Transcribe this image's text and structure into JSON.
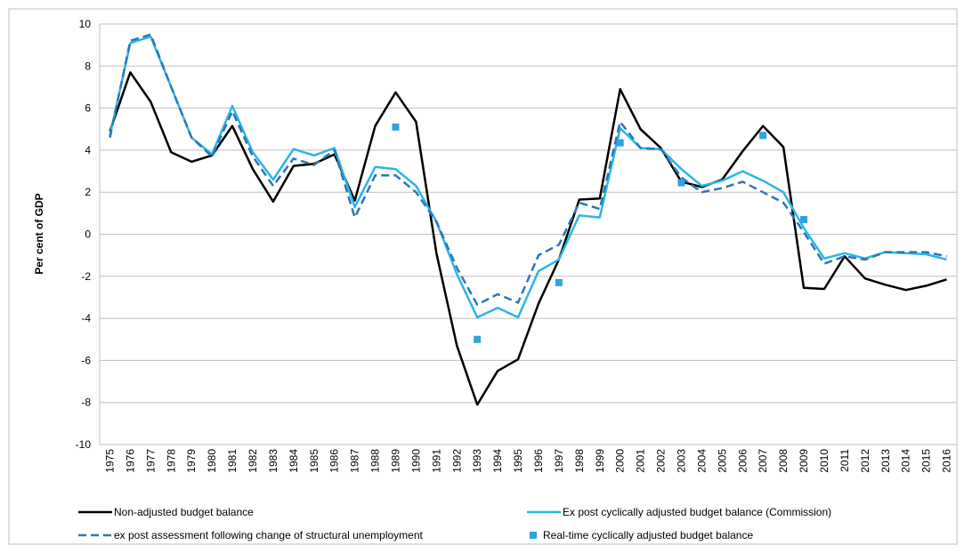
{
  "chart_data": {
    "type": "line",
    "y_label": "Per cent of GDP",
    "categories": [
      "1975",
      "1976",
      "1977",
      "1978",
      "1979",
      "1980",
      "1981",
      "1982",
      "1983",
      "1984",
      "1985",
      "1986",
      "1987",
      "1988",
      "1989",
      "1990",
      "1991",
      "1992",
      "1993",
      "1994",
      "1995",
      "1996",
      "1997",
      "1998",
      "1999",
      "2000",
      "2001",
      "2002",
      "2003",
      "2004",
      "2005",
      "2006",
      "2007",
      "2008",
      "2009",
      "2010",
      "2011",
      "2012",
      "2013",
      "2014",
      "2015",
      "2016"
    ],
    "series": [
      {
        "name": "Non-adjusted budget balance",
        "color": "#000000",
        "style": "solid",
        "values": [
          4.9,
          7.7,
          6.3,
          3.9,
          3.45,
          3.75,
          5.15,
          3.1,
          1.55,
          3.25,
          3.35,
          3.8,
          1.6,
          5.15,
          6.75,
          5.35,
          -0.9,
          -5.3,
          -8.1,
          -6.5,
          -5.95,
          -3.3,
          -1.2,
          1.65,
          1.7,
          6.9,
          5.0,
          4.1,
          2.5,
          2.25,
          2.6,
          3.95,
          5.15,
          4.15,
          -2.55,
          -2.6,
          -1.05,
          -2.1,
          -2.4,
          -2.65,
          -2.45,
          -2.15
        ]
      },
      {
        "name": "Ex post cyclically adjusted budget balance  (Commission)",
        "color": "#29b6e6",
        "style": "solid",
        "values": [
          4.7,
          9.1,
          9.4,
          7.0,
          4.6,
          3.8,
          6.1,
          3.9,
          2.6,
          4.05,
          3.75,
          4.1,
          1.3,
          3.2,
          3.1,
          2.3,
          0.6,
          -1.9,
          -3.95,
          -3.5,
          -3.95,
          -1.75,
          -1.2,
          0.9,
          0.8,
          5.05,
          4.1,
          4.05,
          3.1,
          2.3,
          2.55,
          3.0,
          2.55,
          2.0,
          0.3,
          -1.15,
          -0.9,
          -1.15,
          -0.85,
          -0.9,
          -0.95,
          -1.2
        ]
      },
      {
        "name": "ex post assessment following change of structural unemployment",
        "color": "#2e75b6",
        "style": "dashed",
        "values": [
          4.6,
          9.2,
          9.5,
          7.0,
          4.6,
          3.7,
          5.85,
          3.7,
          2.3,
          3.6,
          3.3,
          4.0,
          0.8,
          2.8,
          2.8,
          2.0,
          0.6,
          -1.6,
          -3.35,
          -2.85,
          -3.25,
          -1.0,
          -0.5,
          1.5,
          1.2,
          5.35,
          4.1,
          4.05,
          2.7,
          2.0,
          2.2,
          2.5,
          2.0,
          1.5,
          0.1,
          -1.4,
          -1.05,
          -1.2,
          -0.85,
          -0.85,
          -0.85,
          -1.05
        ]
      },
      {
        "name": "Real-time cyclically adjusted budget balance",
        "color": "#2ea3dd",
        "style": "markers",
        "values": [
          null,
          null,
          null,
          null,
          null,
          null,
          null,
          null,
          null,
          null,
          null,
          null,
          null,
          null,
          5.1,
          null,
          null,
          null,
          -5.0,
          null,
          null,
          null,
          -2.3,
          null,
          null,
          4.35,
          null,
          null,
          2.45,
          null,
          null,
          null,
          4.7,
          null,
          0.7,
          null,
          null,
          null,
          null,
          null,
          null,
          null
        ]
      }
    ],
    "ylim": [
      -10,
      10
    ],
    "yticks": [
      -10,
      -8,
      -6,
      -4,
      -2,
      0,
      2,
      4,
      6,
      8,
      10
    ],
    "grid": true
  }
}
